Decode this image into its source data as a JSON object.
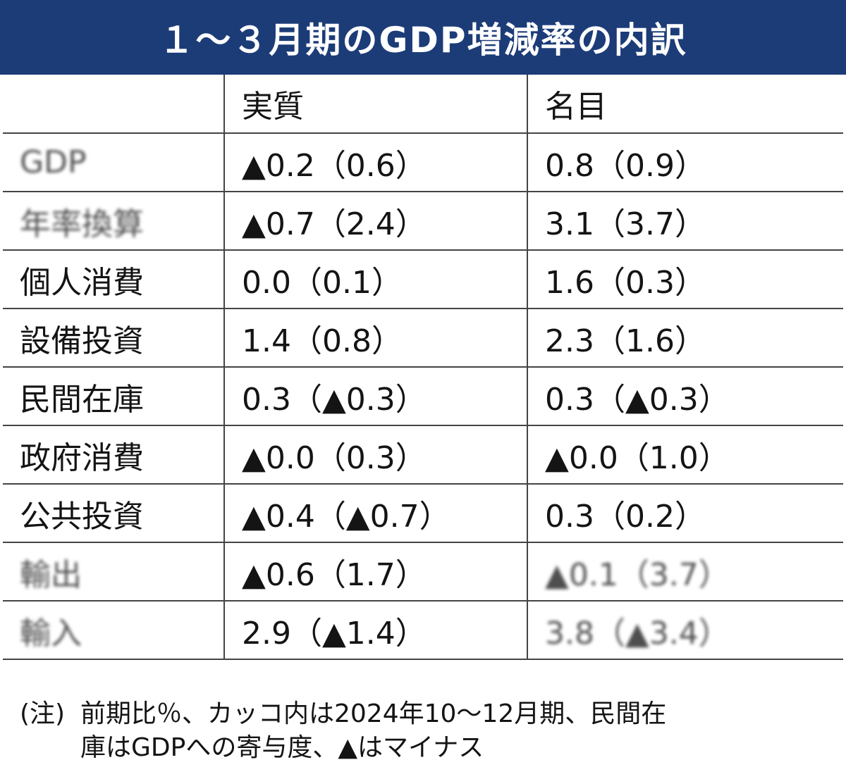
{
  "title": "１～３月期のGDP増減率の内訳",
  "table": {
    "headers": [
      "",
      "実質",
      "名目"
    ],
    "rows": [
      {
        "label": "GDP",
        "real": "▲0.2（0.6）",
        "nominal": "0.8（0.9）",
        "label_blurred": true,
        "nominal_blurred": false
      },
      {
        "label": "年率換算",
        "real": "▲0.7（2.4）",
        "nominal": "3.1（3.7）",
        "label_blurred": true,
        "nominal_blurred": false
      },
      {
        "label": "個人消費",
        "real": "0.0（0.1）",
        "nominal": "1.6（0.3）",
        "label_blurred": false,
        "nominal_blurred": false
      },
      {
        "label": "設備投資",
        "real": "1.4（0.8）",
        "nominal": "2.3（1.6）",
        "label_blurred": false,
        "nominal_blurred": false
      },
      {
        "label": "民間在庫",
        "real": "0.3（▲0.3）",
        "nominal": "0.3（▲0.3）",
        "label_blurred": false,
        "nominal_blurred": false
      },
      {
        "label": "政府消費",
        "real": "▲0.0（0.3）",
        "nominal": "▲0.0（1.0）",
        "label_blurred": false,
        "nominal_blurred": false
      },
      {
        "label": "公共投資",
        "real": "▲0.4（▲0.7）",
        "nominal": "0.3（0.2）",
        "label_blurred": false,
        "nominal_blurred": false
      },
      {
        "label": "輸出",
        "real": "▲0.6（1.7）",
        "nominal": "▲0.1（3.7）",
        "label_blurred": true,
        "nominal_blurred": true
      },
      {
        "label": "輸入",
        "real": "2.9（▲1.4）",
        "nominal": "3.8（▲3.4）",
        "label_blurred": true,
        "nominal_blurred": true
      }
    ]
  },
  "note": {
    "prefix": "(注)",
    "line1": "前期比％、カッコ内は2024年10～12月期、民間在",
    "line2": "庫はGDPへの寄与度、▲はマイナス"
  }
}
